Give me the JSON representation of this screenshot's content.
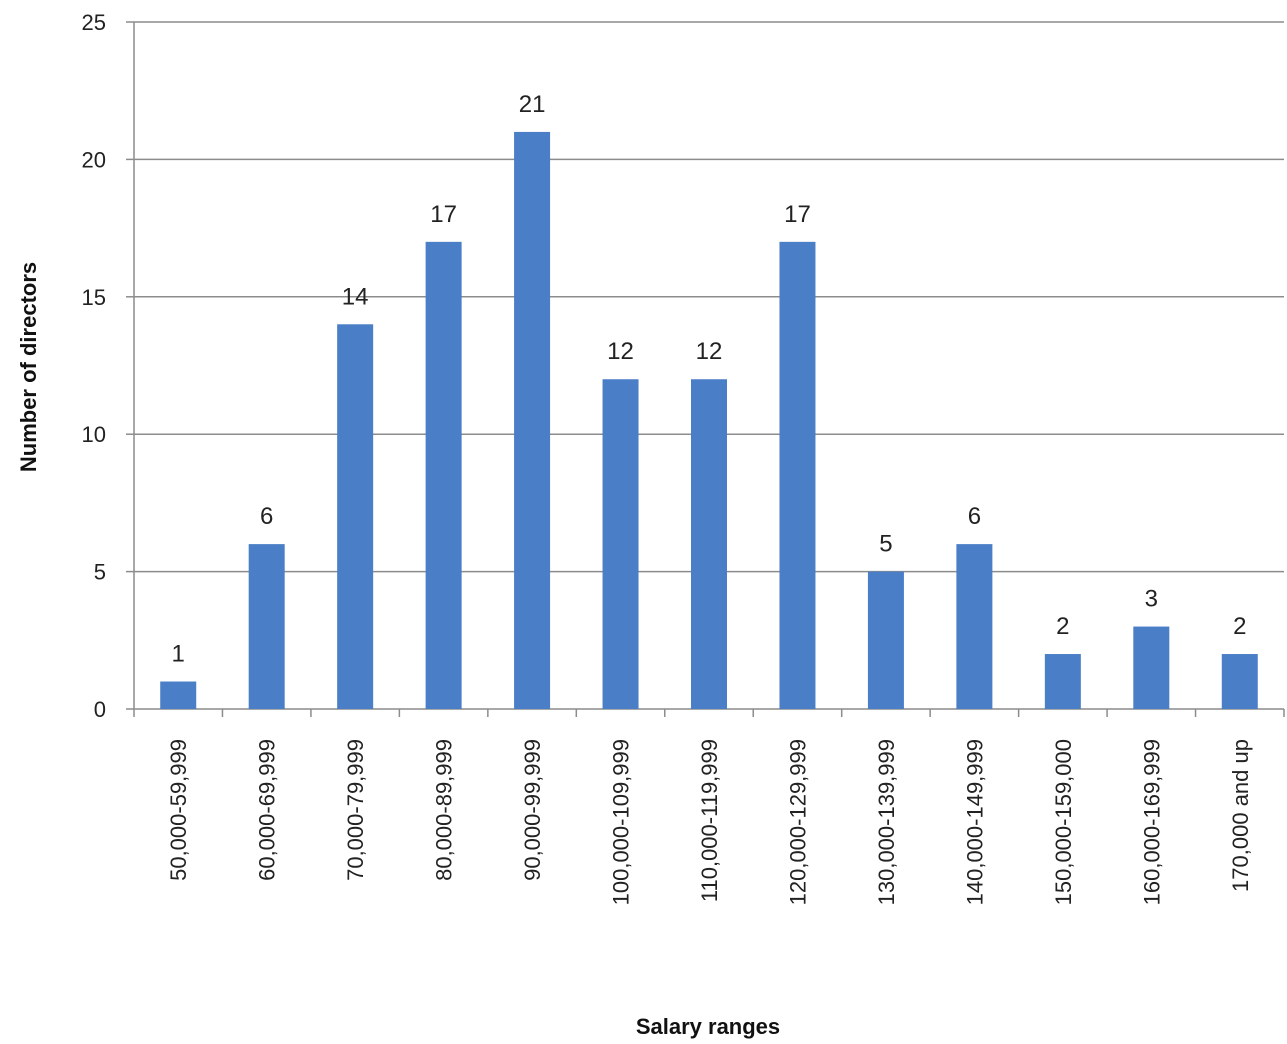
{
  "chart_data": {
    "type": "bar",
    "title": "",
    "xlabel": "Salary ranges",
    "ylabel": "Number of directors",
    "categories": [
      "50,000-59,999",
      "60,000-69,999",
      "70,000-79,999",
      "80,000-89,999",
      "90,000-99,999",
      "100,000-109,999",
      "110,000-119,999",
      "120,000-129,999",
      "130,000-139,999",
      "140,000-149,999",
      "150,000-159,000",
      "160,000-169,999",
      "170,000 and up"
    ],
    "values": [
      1,
      6,
      14,
      17,
      21,
      12,
      12,
      17,
      5,
      6,
      2,
      3,
      2
    ],
    "data_labels": [
      "1",
      "6",
      "14",
      "17",
      "21",
      "12",
      "12",
      "17",
      "5",
      "6",
      "2",
      "3",
      "2"
    ],
    "ylim": [
      0,
      25
    ],
    "y_ticks": [
      0,
      5,
      10,
      15,
      20,
      25
    ],
    "y_tick_labels": [
      "0",
      "5",
      "10",
      "15",
      "20",
      "25"
    ],
    "grid": true,
    "legend": "none",
    "bar_color": "#4a7ec6",
    "grid_color": "#8c8c8c"
  }
}
